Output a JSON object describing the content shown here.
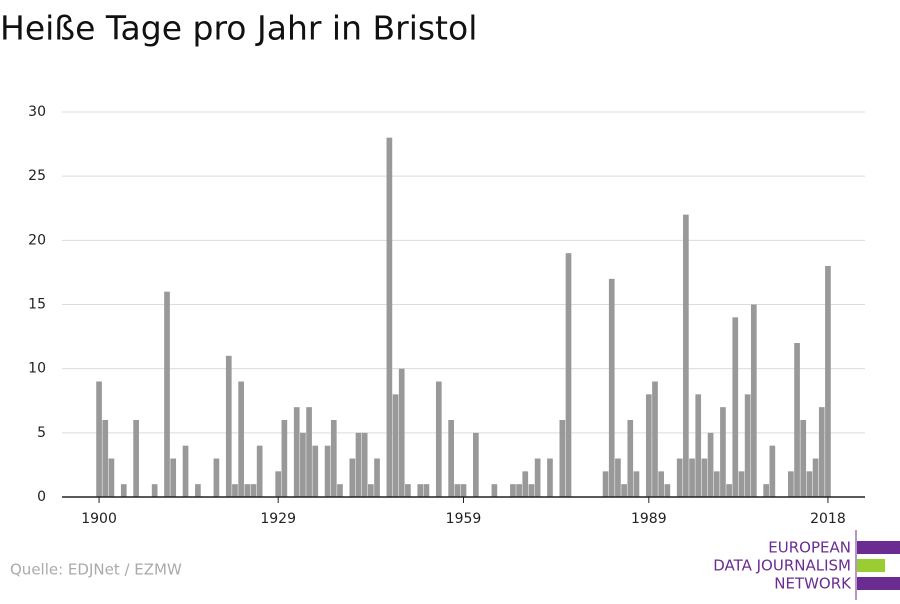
{
  "chart_data": {
    "type": "bar",
    "title": "Heiße Tage pro Jahr in Bristol",
    "source": "Quelle: EDJNet / EZMW",
    "logo": [
      "EUROPEAN",
      "DATA JOURNALISM",
      "NETWORK"
    ],
    "color": "#999999",
    "grid": true,
    "x": [
      1900,
      1901,
      1902,
      1903,
      1904,
      1905,
      1906,
      1907,
      1908,
      1909,
      1910,
      1911,
      1912,
      1913,
      1914,
      1915,
      1916,
      1917,
      1918,
      1919,
      1920,
      1921,
      1922,
      1923,
      1924,
      1925,
      1926,
      1927,
      1928,
      1929,
      1930,
      1931,
      1932,
      1933,
      1934,
      1935,
      1936,
      1937,
      1938,
      1939,
      1940,
      1941,
      1942,
      1943,
      1944,
      1945,
      1946,
      1947,
      1948,
      1949,
      1950,
      1951,
      1952,
      1953,
      1954,
      1955,
      1956,
      1957,
      1958,
      1959,
      1960,
      1961,
      1962,
      1963,
      1964,
      1965,
      1966,
      1967,
      1968,
      1969,
      1970,
      1971,
      1972,
      1973,
      1974,
      1975,
      1976,
      1977,
      1978,
      1979,
      1980,
      1981,
      1982,
      1983,
      1984,
      1985,
      1986,
      1987,
      1988,
      1989,
      1990,
      1991,
      1992,
      1993,
      1994,
      1995,
      1996,
      1997,
      1998,
      1999,
      2000,
      2001,
      2002,
      2003,
      2004,
      2005,
      2006,
      2007,
      2008,
      2009,
      2010,
      2011,
      2012,
      2013,
      2014,
      2015,
      2016,
      2017,
      2018
    ],
    "values": [
      9,
      6,
      3,
      0,
      1,
      0,
      6,
      0,
      0,
      1,
      0,
      16,
      3,
      0,
      4,
      0,
      1,
      0,
      0,
      3,
      0,
      11,
      1,
      9,
      1,
      1,
      4,
      0,
      0,
      2,
      6,
      0,
      7,
      5,
      7,
      4,
      0,
      4,
      6,
      1,
      0,
      3,
      5,
      5,
      1,
      3,
      0,
      28,
      8,
      10,
      1,
      0,
      1,
      1,
      0,
      9,
      0,
      6,
      1,
      1,
      0,
      5,
      0,
      0,
      1,
      0,
      0,
      1,
      1,
      2,
      1,
      3,
      0,
      3,
      0,
      6,
      19,
      0,
      0,
      0,
      0,
      0,
      2,
      17,
      3,
      1,
      6,
      2,
      0,
      8,
      9,
      2,
      1,
      0,
      3,
      22,
      3,
      8,
      3,
      5,
      2,
      7,
      1,
      14,
      2,
      8,
      15,
      0,
      1,
      4,
      0,
      0,
      2,
      12,
      6,
      2,
      3,
      7,
      18
    ],
    "xlim": [
      1894,
      2024
    ],
    "xticks": [
      1900,
      1929,
      1959,
      1989,
      2018
    ],
    "ylim": [
      0,
      30
    ],
    "yticks": [
      0,
      5,
      10,
      15,
      20,
      25,
      30
    ]
  }
}
